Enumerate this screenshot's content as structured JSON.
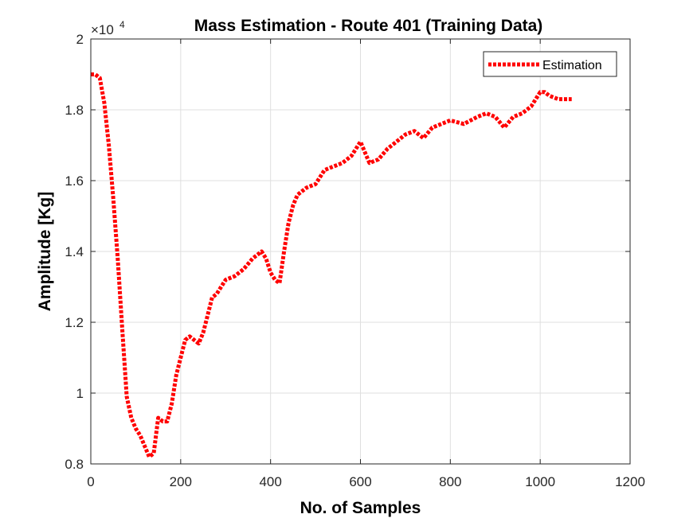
{
  "chart_data": {
    "type": "line",
    "title": "Mass Estimation - Route 401 (Training Data)",
    "xlabel": "No. of Samples",
    "ylabel": "Amplitude [Kg]",
    "y_exponent_label": "×10",
    "y_exponent_power": "4",
    "xlim": [
      0,
      1200
    ],
    "ylim": [
      0.8,
      2.0
    ],
    "y_scale_factor": 10000,
    "xticks": [
      0,
      200,
      400,
      600,
      800,
      1000,
      1200
    ],
    "xtick_labels": [
      "0",
      "200",
      "400",
      "600",
      "800",
      "1000",
      "1200"
    ],
    "yticks": [
      0.8,
      1.0,
      1.2,
      1.4,
      1.6,
      1.8,
      2.0
    ],
    "ytick_labels": [
      "0.8",
      "1",
      "1.2",
      "1.4",
      "1.6",
      "1.8",
      "2"
    ],
    "grid": true,
    "legend_position": "top-right",
    "series": [
      {
        "name": "Estimation",
        "color": "#ff0000",
        "line_style": "dotted",
        "x": [
          0,
          10,
          20,
          30,
          40,
          50,
          60,
          70,
          80,
          90,
          100,
          110,
          120,
          130,
          140,
          150,
          160,
          170,
          180,
          190,
          200,
          210,
          220,
          230,
          240,
          250,
          260,
          270,
          280,
          290,
          300,
          320,
          340,
          360,
          380,
          390,
          400,
          410,
          420,
          430,
          440,
          450,
          460,
          480,
          500,
          520,
          540,
          560,
          580,
          600,
          610,
          620,
          640,
          660,
          680,
          700,
          720,
          740,
          760,
          780,
          800,
          830,
          860,
          880,
          900,
          920,
          940,
          960,
          980,
          1000,
          1010,
          1020,
          1040,
          1060,
          1070
        ],
        "y": [
          19000,
          19000,
          18900,
          18200,
          17000,
          15500,
          13800,
          11800,
          9900,
          9300,
          9000,
          8800,
          8500,
          8200,
          8300,
          9300,
          9200,
          9200,
          9700,
          10500,
          11000,
          11500,
          11600,
          11500,
          11400,
          11700,
          12200,
          12700,
          12800,
          13000,
          13200,
          13300,
          13500,
          13800,
          14000,
          13800,
          13400,
          13200,
          13100,
          14000,
          14800,
          15300,
          15600,
          15800,
          15900,
          16300,
          16400,
          16500,
          16700,
          17100,
          16800,
          16500,
          16600,
          16900,
          17100,
          17300,
          17400,
          17200,
          17500,
          17600,
          17700,
          17600,
          17800,
          17900,
          17800,
          17500,
          17800,
          17900,
          18100,
          18500,
          18500,
          18400,
          18300,
          18300,
          18300
        ]
      }
    ]
  }
}
